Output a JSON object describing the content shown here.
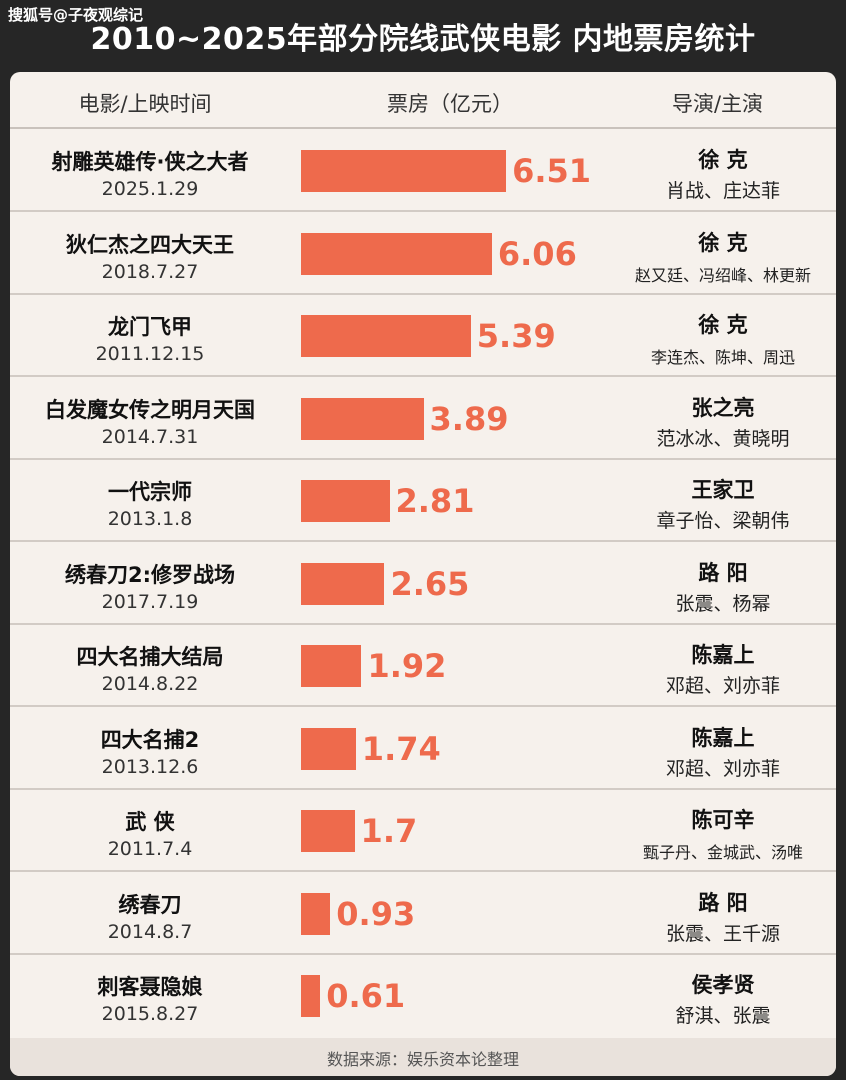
{
  "watermark": "搜狐号@子夜观综记",
  "title": "2010~2025年部分院线武侠电影 内地票房统计",
  "headers": {
    "movie": "电影/上映时间",
    "box_office": "票房（亿元）",
    "director_cast": "导演/主演"
  },
  "colors": {
    "bar": "#ee6a4c",
    "background": "#f6f1ec",
    "title_band": "#262626"
  },
  "chart_data": {
    "type": "bar",
    "title": "2010~2025年部分院线武侠电影 内地票房统计",
    "xlabel": "票房（亿元）",
    "ylabel": "电影/上映时间",
    "xlim": [
      0,
      7
    ],
    "categories": [
      "射雕英雄传·侠之大者",
      "狄仁杰之四大天王",
      "龙门飞甲",
      "白发魔女传之明月天国",
      "一代宗师",
      "绣春刀2:修罗战场",
      "四大名捕大结局",
      "四大名捕2",
      "武 侠",
      "绣春刀",
      "刺客聂隐娘"
    ],
    "values": [
      6.51,
      6.06,
      5.39,
      3.89,
      2.81,
      2.65,
      1.92,
      1.74,
      1.7,
      0.93,
      0.61
    ],
    "value_labels": [
      "6.51",
      "6.06",
      "5.39",
      "3.89",
      "2.81",
      "2.65",
      "1.92",
      "1.74",
      "1.7",
      "0.93",
      "0.61"
    ]
  },
  "rows": [
    {
      "title": "射雕英雄传·侠之大者",
      "date": "2025.1.29",
      "director": "徐 克",
      "cast": "肖战、庄达菲"
    },
    {
      "title": "狄仁杰之四大天王",
      "date": "2018.7.27",
      "director": "徐 克",
      "cast": "赵又廷、冯绍峰、林更新"
    },
    {
      "title": "龙门飞甲",
      "date": "2011.12.15",
      "director": "徐 克",
      "cast": "李连杰、陈坤、周迅"
    },
    {
      "title": "白发魔女传之明月天国",
      "date": "2014.7.31",
      "director": "张之亮",
      "cast": "范冰冰、黄晓明"
    },
    {
      "title": "一代宗师",
      "date": "2013.1.8",
      "director": "王家卫",
      "cast": "章子怡、梁朝伟"
    },
    {
      "title": "绣春刀2:修罗战场",
      "date": "2017.7.19",
      "director": "路 阳",
      "cast": "张震、杨幂"
    },
    {
      "title": "四大名捕大结局",
      "date": "2014.8.22",
      "director": "陈嘉上",
      "cast": "邓超、刘亦菲"
    },
    {
      "title": "四大名捕2",
      "date": "2013.12.6",
      "director": "陈嘉上",
      "cast": "邓超、刘亦菲"
    },
    {
      "title": "武 侠",
      "date": "2011.7.4",
      "director": "陈可辛",
      "cast": "甄子丹、金城武、汤唯"
    },
    {
      "title": "绣春刀",
      "date": "2014.8.7",
      "director": "路 阳",
      "cast": "张震、王千源"
    },
    {
      "title": "刺客聂隐娘",
      "date": "2015.8.27",
      "director": "侯孝贤",
      "cast": "舒淇、张震"
    }
  ],
  "source": "数据来源：娱乐资本论整理"
}
